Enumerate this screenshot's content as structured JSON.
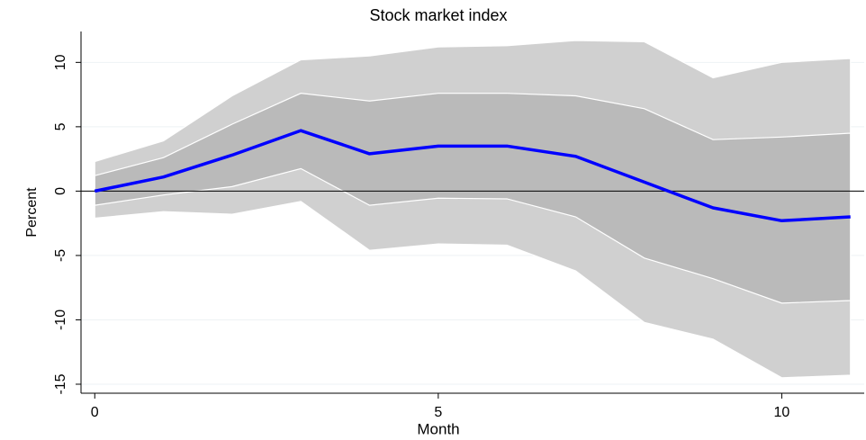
{
  "chart_data": {
    "type": "line",
    "title": "Stock market index",
    "x_label": "Month",
    "y_label": "Percent",
    "x": [
      0,
      1,
      2,
      3,
      4,
      5,
      6,
      7,
      8,
      9,
      10,
      11
    ],
    "values": [
      0,
      1.1,
      2.8,
      4.7,
      2.9,
      3.5,
      3.5,
      2.7,
      0.7,
      -1.3,
      -2.3,
      -2.0
    ],
    "color": "#0000ff",
    "bands": [
      {
        "upper": [
          2.3,
          3.9,
          7.4,
          10.2,
          10.5,
          11.2,
          11.3,
          11.7,
          11.6,
          8.8,
          10.0,
          10.3
        ],
        "lower": [
          -2.1,
          -1.6,
          -1.8,
          -0.8,
          -4.6,
          -4.1,
          -4.2,
          -6.2,
          -10.2,
          -11.5,
          -14.5,
          -14.3
        ],
        "color": "#d0d0d0"
      },
      {
        "upper": [
          1.2,
          2.6,
          5.2,
          7.6,
          7.0,
          7.6,
          7.6,
          7.4,
          6.4,
          4.0,
          4.2,
          4.5
        ],
        "lower": [
          -1.1,
          -0.3,
          0.35,
          1.75,
          -1.1,
          -0.55,
          -0.6,
          -2.0,
          -5.2,
          -6.8,
          -8.7,
          -8.5
        ],
        "color": "#bababa"
      }
    ],
    "reference_line": 0,
    "xlim": [
      -0.2,
      11.2
    ],
    "ylim": [
      -15.7,
      12.4
    ],
    "xticks": [
      0,
      5,
      10
    ],
    "yticks": [
      -15,
      -10,
      -5,
      0,
      5,
      10
    ],
    "grid": true
  }
}
